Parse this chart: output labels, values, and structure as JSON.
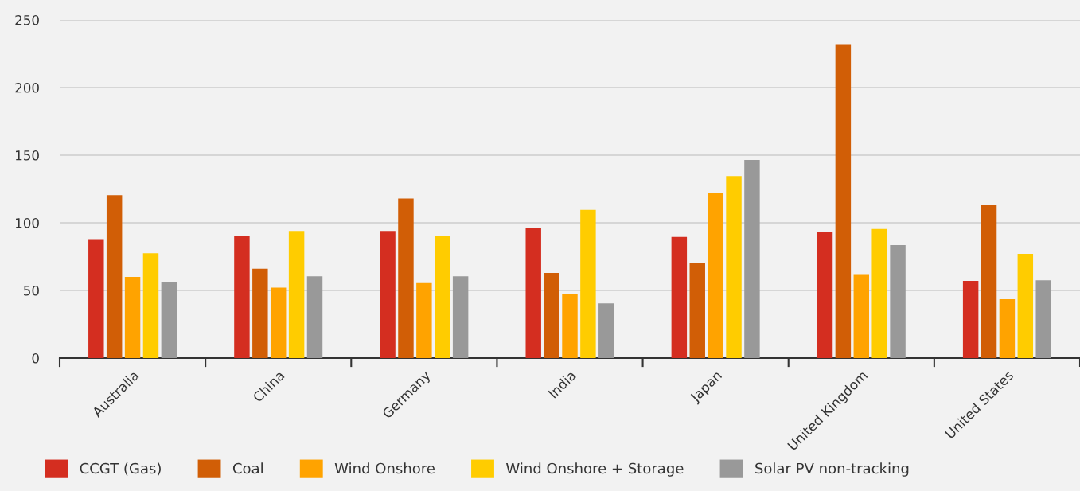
{
  "chart_data": {
    "type": "bar",
    "categories": [
      "Australia",
      "China",
      "Germany",
      "India",
      "Japan",
      "United Kingdom",
      "United States"
    ],
    "series": [
      {
        "name": "CCGT (Gas)",
        "color": "#d42e20",
        "values": [
          88,
          90.5,
          94,
          96,
          89.5,
          93,
          57
        ]
      },
      {
        "name": "Coal",
        "color": "#d15e06",
        "values": [
          120.5,
          66,
          118,
          63,
          70.5,
          232,
          113
        ]
      },
      {
        "name": "Wind Onshore",
        "color": "#ffa300",
        "values": [
          60,
          52,
          56,
          47,
          122,
          62,
          43.5
        ]
      },
      {
        "name": "Wind Onshore + Storage",
        "color": "#ffcc00",
        "values": [
          77.5,
          94,
          90,
          109.5,
          134.5,
          95.5,
          77
        ]
      },
      {
        "name": "Solar PV non-tracking",
        "color": "#999999",
        "values": [
          56.5,
          60.5,
          60.5,
          40.5,
          146.5,
          83.5,
          57.5
        ]
      }
    ],
    "ylim": [
      0,
      250
    ],
    "yticks": [
      0,
      50,
      100,
      150,
      200,
      250
    ],
    "grid": "y",
    "legend": "bottom"
  }
}
